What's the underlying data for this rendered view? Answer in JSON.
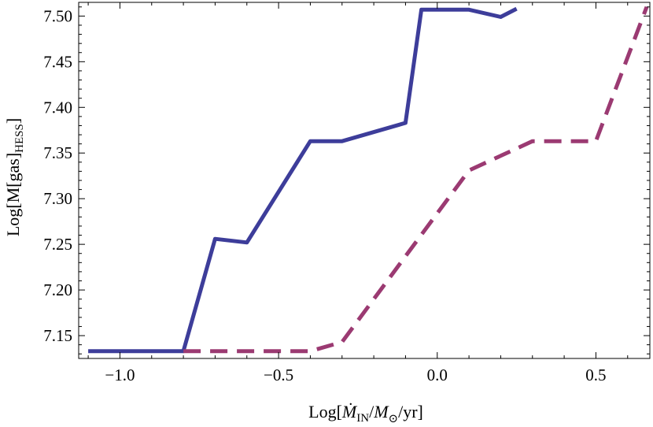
{
  "chart_data": {
    "type": "line",
    "title": "",
    "xlabel": "Log[Ṁ_IN/M_⊙/yr]",
    "ylabel": "Log[M[gas]_HESS]",
    "xlim": [
      -1.13,
      0.67
    ],
    "ylim": [
      7.125,
      7.515
    ],
    "grid": false,
    "legend": "none",
    "x_ticks": [
      -1.0,
      -0.5,
      0.0,
      0.5
    ],
    "x_tick_labels": [
      "−1.0",
      "−0.5",
      "0.0",
      "0.5"
    ],
    "y_ticks": [
      7.15,
      7.2,
      7.25,
      7.3,
      7.35,
      7.4,
      7.45,
      7.5
    ],
    "y_tick_labels": [
      "7.15",
      "7.20",
      "7.25",
      "7.30",
      "7.35",
      "7.40",
      "7.45",
      "7.50"
    ],
    "series": [
      {
        "style": "solid",
        "color": "#3d3d9a",
        "x": [
          -1.1,
          -0.8,
          -0.7,
          -0.6,
          -0.4,
          -0.3,
          -0.1,
          -0.05,
          0.1,
          0.2,
          0.25
        ],
        "y": [
          7.133,
          7.133,
          7.256,
          7.252,
          7.363,
          7.363,
          7.383,
          7.507,
          7.507,
          7.499,
          7.508
        ]
      },
      {
        "style": "dashed",
        "color": "#9b3a72",
        "x": [
          -0.8,
          -0.4,
          -0.3,
          0.1,
          0.3,
          0.5,
          0.66
        ],
        "y": [
          7.133,
          7.133,
          7.143,
          7.331,
          7.363,
          7.363,
          7.51
        ]
      }
    ]
  }
}
